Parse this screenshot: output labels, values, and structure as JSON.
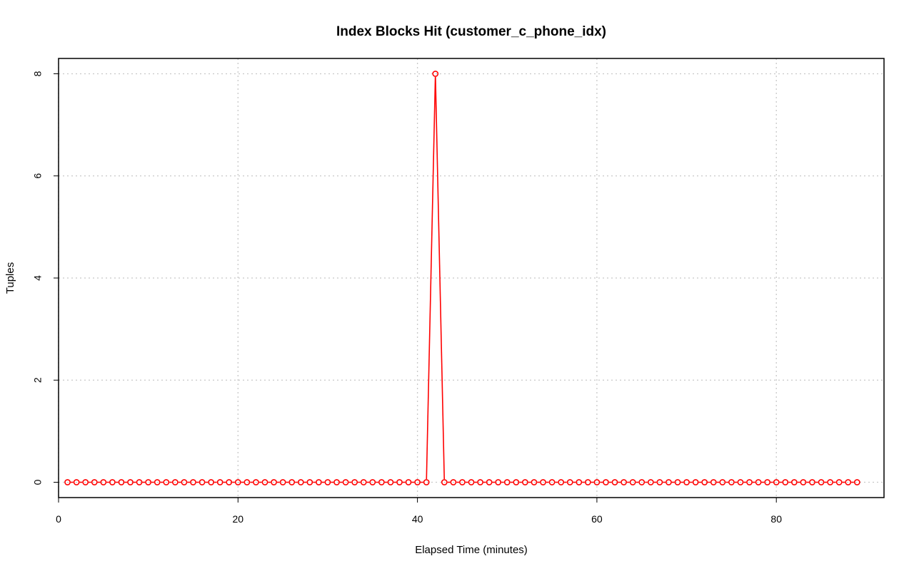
{
  "chart_data": {
    "type": "line",
    "title": "Index Blocks Hit (customer_c_phone_idx)",
    "xlabel": "Elapsed Time (minutes)",
    "ylabel": "Tuples",
    "xlim": [
      0,
      92
    ],
    "ylim": [
      -0.3,
      8.3
    ],
    "xticks": [
      0,
      20,
      40,
      60,
      80
    ],
    "yticks": [
      0,
      2,
      4,
      6,
      8
    ],
    "grid": true,
    "line_style": "points and lines",
    "series": [
      {
        "color": "#ff0000",
        "x": [
          1,
          2,
          3,
          4,
          5,
          6,
          7,
          8,
          9,
          10,
          11,
          12,
          13,
          14,
          15,
          16,
          17,
          18,
          19,
          20,
          21,
          22,
          23,
          24,
          25,
          26,
          27,
          28,
          29,
          30,
          31,
          32,
          33,
          34,
          35,
          36,
          37,
          38,
          39,
          40,
          41,
          42,
          43,
          44,
          45,
          46,
          47,
          48,
          49,
          50,
          51,
          52,
          53,
          54,
          55,
          56,
          57,
          58,
          59,
          60,
          61,
          62,
          63,
          64,
          65,
          66,
          67,
          68,
          69,
          70,
          71,
          72,
          73,
          74,
          75,
          76,
          77,
          78,
          79,
          80,
          81,
          82,
          83,
          84,
          85,
          86,
          87,
          88,
          89
        ],
        "values": [
          0,
          0,
          0,
          0,
          0,
          0,
          0,
          0,
          0,
          0,
          0,
          0,
          0,
          0,
          0,
          0,
          0,
          0,
          0,
          0,
          0,
          0,
          0,
          0,
          0,
          0,
          0,
          0,
          0,
          0,
          0,
          0,
          0,
          0,
          0,
          0,
          0,
          0,
          0,
          0,
          0,
          8,
          0,
          0,
          0,
          0,
          0,
          0,
          0,
          0,
          0,
          0,
          0,
          0,
          0,
          0,
          0,
          0,
          0,
          0,
          0,
          0,
          0,
          0,
          0,
          0,
          0,
          0,
          0,
          0,
          0,
          0,
          0,
          0,
          0,
          0,
          0,
          0,
          0,
          0,
          0,
          0,
          0,
          0,
          0,
          0,
          0,
          0,
          0
        ]
      }
    ]
  }
}
